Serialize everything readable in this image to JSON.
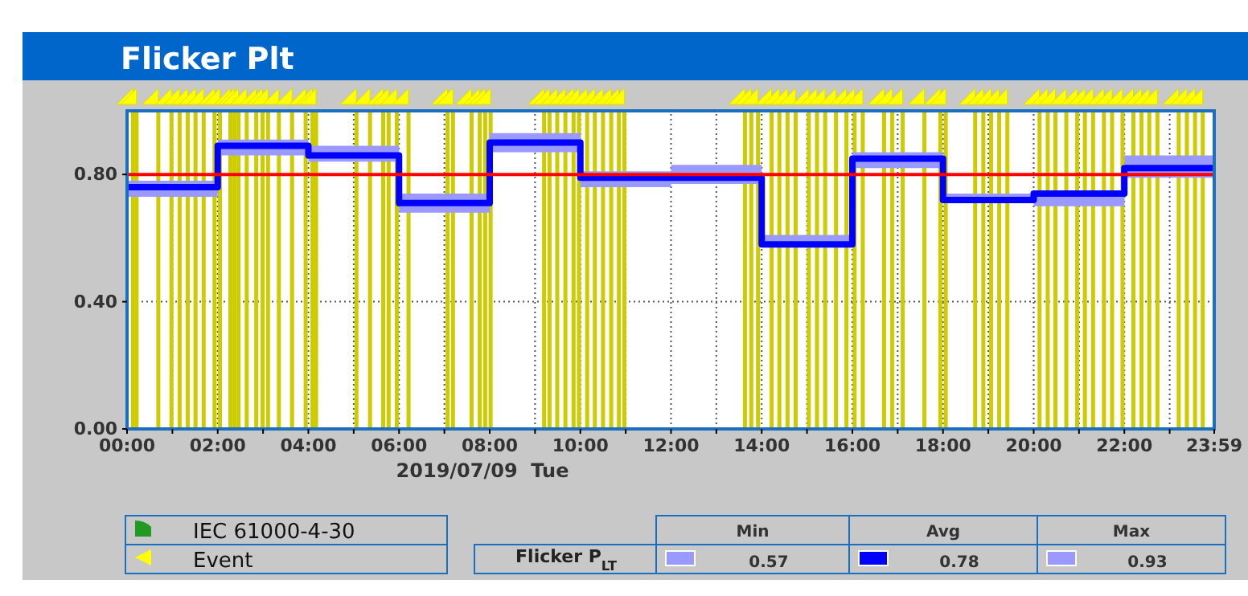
{
  "chart_data": {
    "type": "step",
    "title": "Flicker Plt",
    "xlabel": "2019/07/09  Tue",
    "xlim": [
      0,
      23.983
    ],
    "xticks": [
      {
        "value": 0,
        "label": "00:00"
      },
      {
        "value": 1,
        "label": null
      },
      {
        "value": 2,
        "label": "02:00"
      },
      {
        "value": 3,
        "label": null
      },
      {
        "value": 4,
        "label": "04:00"
      },
      {
        "value": 5,
        "label": null
      },
      {
        "value": 6,
        "label": "06:00"
      },
      {
        "value": 7,
        "label": null
      },
      {
        "value": 8,
        "label": "08:00"
      },
      {
        "value": 9,
        "label": null
      },
      {
        "value": 10,
        "label": "10:00"
      },
      {
        "value": 11,
        "label": null
      },
      {
        "value": 12,
        "label": "12:00"
      },
      {
        "value": 13,
        "label": null
      },
      {
        "value": 14,
        "label": "14:00"
      },
      {
        "value": 15,
        "label": null
      },
      {
        "value": 16,
        "label": "16:00"
      },
      {
        "value": 17,
        "label": null
      },
      {
        "value": 18,
        "label": "18:00"
      },
      {
        "value": 19,
        "label": null
      },
      {
        "value": 20,
        "label": "20:00"
      },
      {
        "value": 21,
        "label": null
      },
      {
        "value": 22,
        "label": "22:00"
      },
      {
        "value": 23,
        "label": null
      },
      {
        "value": 23.983,
        "label": "23:59"
      }
    ],
    "ylim": [
      0,
      1.0
    ],
    "yticks": [
      {
        "value": 0,
        "label": "0.00"
      },
      {
        "value": 0.4,
        "label": "0.40"
      },
      {
        "value": 0.8,
        "label": "0.80"
      }
    ],
    "grid": true,
    "series": [
      {
        "color": "#0000ff",
        "x": [
          0,
          2,
          4,
          6,
          8,
          10,
          12,
          14,
          16,
          18,
          20,
          22,
          23.983
        ],
        "values": [
          0.76,
          0.89,
          0.86,
          0.71,
          0.9,
          0.79,
          0.79,
          0.58,
          0.85,
          0.72,
          0.74,
          0.82,
          0.82
        ],
        "lower": [
          0.73,
          0.86,
          0.84,
          0.68,
          0.87,
          0.76,
          0.77,
          0.57,
          0.82,
          0.71,
          0.7,
          0.79,
          0.79
        ],
        "upper": [
          0.78,
          0.91,
          0.89,
          0.74,
          0.93,
          0.81,
          0.83,
          0.61,
          0.87,
          0.74,
          0.75,
          0.86,
          0.86
        ]
      }
    ],
    "ref_lines": [
      {
        "axis": "y",
        "value": 0.8,
        "color": "#ff0000"
      },
      {
        "axis": "x",
        "value": 0.13,
        "color": "#cccc00"
      },
      {
        "axis": "x",
        "value": 0.21,
        "color": "#cccc00"
      },
      {
        "axis": "x",
        "value": 0.69,
        "color": "#cccc00"
      },
      {
        "axis": "x",
        "value": 0.98,
        "color": "#cccc00"
      },
      {
        "axis": "x",
        "value": 1.16,
        "color": "#cccc00"
      },
      {
        "axis": "x",
        "value": 1.34,
        "color": "#cccc00"
      },
      {
        "axis": "x",
        "value": 1.51,
        "color": "#cccc00"
      },
      {
        "axis": "x",
        "value": 1.69,
        "color": "#cccc00"
      },
      {
        "axis": "x",
        "value": 1.93,
        "color": "#cccc00"
      },
      {
        "axis": "x",
        "value": 2.05,
        "color": "#cccc00"
      },
      {
        "axis": "x",
        "value": 2.28,
        "color": "#cccc00"
      },
      {
        "axis": "x",
        "value": 2.37,
        "color": "#cccc00"
      },
      {
        "axis": "x",
        "value": 2.46,
        "color": "#cccc00"
      },
      {
        "axis": "x",
        "value": 2.64,
        "color": "#cccc00"
      },
      {
        "axis": "x",
        "value": 2.85,
        "color": "#cccc00"
      },
      {
        "axis": "x",
        "value": 2.99,
        "color": "#cccc00"
      },
      {
        "axis": "x",
        "value": 3.11,
        "color": "#cccc00"
      },
      {
        "axis": "x",
        "value": 3.35,
        "color": "#cccc00"
      },
      {
        "axis": "x",
        "value": 3.64,
        "color": "#cccc00"
      },
      {
        "axis": "x",
        "value": 3.94,
        "color": "#cccc00"
      },
      {
        "axis": "x",
        "value": 4.09,
        "color": "#cccc00"
      },
      {
        "axis": "x",
        "value": 4.17,
        "color": "#cccc00"
      },
      {
        "axis": "x",
        "value": 5.06,
        "color": "#cccc00"
      },
      {
        "axis": "x",
        "value": 5.36,
        "color": "#cccc00"
      },
      {
        "axis": "x",
        "value": 5.65,
        "color": "#cccc00"
      },
      {
        "axis": "x",
        "value": 5.77,
        "color": "#cccc00"
      },
      {
        "axis": "x",
        "value": 5.95,
        "color": "#cccc00"
      },
      {
        "axis": "x",
        "value": 6.21,
        "color": "#cccc00"
      },
      {
        "axis": "x",
        "value": 7.07,
        "color": "#cccc00"
      },
      {
        "axis": "x",
        "value": 7.19,
        "color": "#cccc00"
      },
      {
        "axis": "x",
        "value": 7.6,
        "color": "#cccc00"
      },
      {
        "axis": "x",
        "value": 7.78,
        "color": "#cccc00"
      },
      {
        "axis": "x",
        "value": 7.9,
        "color": "#cccc00"
      },
      {
        "axis": "x",
        "value": 8.02,
        "color": "#cccc00"
      },
      {
        "axis": "x",
        "value": 9.2,
        "color": "#cccc00"
      },
      {
        "axis": "x",
        "value": 9.32,
        "color": "#cccc00"
      },
      {
        "axis": "x",
        "value": 9.49,
        "color": "#cccc00"
      },
      {
        "axis": "x",
        "value": 9.67,
        "color": "#cccc00"
      },
      {
        "axis": "x",
        "value": 9.85,
        "color": "#cccc00"
      },
      {
        "axis": "x",
        "value": 9.97,
        "color": "#cccc00"
      },
      {
        "axis": "x",
        "value": 10.15,
        "color": "#cccc00"
      },
      {
        "axis": "x",
        "value": 10.32,
        "color": "#cccc00"
      },
      {
        "axis": "x",
        "value": 10.5,
        "color": "#cccc00"
      },
      {
        "axis": "x",
        "value": 10.68,
        "color": "#cccc00"
      },
      {
        "axis": "x",
        "value": 10.85,
        "color": "#cccc00"
      },
      {
        "axis": "x",
        "value": 10.97,
        "color": "#cccc00"
      },
      {
        "axis": "x",
        "value": 13.63,
        "color": "#cccc00"
      },
      {
        "axis": "x",
        "value": 13.77,
        "color": "#cccc00"
      },
      {
        "axis": "x",
        "value": 13.92,
        "color": "#cccc00"
      },
      {
        "axis": "x",
        "value": 14.22,
        "color": "#cccc00"
      },
      {
        "axis": "x",
        "value": 14.39,
        "color": "#cccc00"
      },
      {
        "axis": "x",
        "value": 14.57,
        "color": "#cccc00"
      },
      {
        "axis": "x",
        "value": 14.75,
        "color": "#cccc00"
      },
      {
        "axis": "x",
        "value": 15.04,
        "color": "#cccc00"
      },
      {
        "axis": "x",
        "value": 15.22,
        "color": "#cccc00"
      },
      {
        "axis": "x",
        "value": 15.4,
        "color": "#cccc00"
      },
      {
        "axis": "x",
        "value": 15.64,
        "color": "#cccc00"
      },
      {
        "axis": "x",
        "value": 15.87,
        "color": "#cccc00"
      },
      {
        "axis": "x",
        "value": 16.05,
        "color": "#cccc00"
      },
      {
        "axis": "x",
        "value": 16.23,
        "color": "#cccc00"
      },
      {
        "axis": "x",
        "value": 16.7,
        "color": "#cccc00"
      },
      {
        "axis": "x",
        "value": 16.88,
        "color": "#cccc00"
      },
      {
        "axis": "x",
        "value": 17.11,
        "color": "#cccc00"
      },
      {
        "axis": "x",
        "value": 17.59,
        "color": "#cccc00"
      },
      {
        "axis": "x",
        "value": 17.94,
        "color": "#cccc00"
      },
      {
        "axis": "x",
        "value": 18.06,
        "color": "#cccc00"
      },
      {
        "axis": "x",
        "value": 18.71,
        "color": "#cccc00"
      },
      {
        "axis": "x",
        "value": 18.89,
        "color": "#cccc00"
      },
      {
        "axis": "x",
        "value": 19.06,
        "color": "#cccc00"
      },
      {
        "axis": "x",
        "value": 19.24,
        "color": "#cccc00"
      },
      {
        "axis": "x",
        "value": 19.42,
        "color": "#cccc00"
      },
      {
        "axis": "x",
        "value": 20.13,
        "color": "#cccc00"
      },
      {
        "axis": "x",
        "value": 20.31,
        "color": "#cccc00"
      },
      {
        "axis": "x",
        "value": 20.48,
        "color": "#cccc00"
      },
      {
        "axis": "x",
        "value": 20.72,
        "color": "#cccc00"
      },
      {
        "axis": "x",
        "value": 20.96,
        "color": "#cccc00"
      },
      {
        "axis": "x",
        "value": 21.13,
        "color": "#cccc00"
      },
      {
        "axis": "x",
        "value": 21.31,
        "color": "#cccc00"
      },
      {
        "axis": "x",
        "value": 21.55,
        "color": "#cccc00"
      },
      {
        "axis": "x",
        "value": 21.73,
        "color": "#cccc00"
      },
      {
        "axis": "x",
        "value": 21.96,
        "color": "#cccc00"
      },
      {
        "axis": "x",
        "value": 22.2,
        "color": "#cccc00"
      },
      {
        "axis": "x",
        "value": 22.38,
        "color": "#cccc00"
      },
      {
        "axis": "x",
        "value": 22.55,
        "color": "#cccc00"
      },
      {
        "axis": "x",
        "value": 22.73,
        "color": "#cccc00"
      },
      {
        "axis": "x",
        "value": 23.2,
        "color": "#cccc00"
      },
      {
        "axis": "x",
        "value": 23.38,
        "color": "#cccc00"
      },
      {
        "axis": "x",
        "value": 23.56,
        "color": "#cccc00"
      },
      {
        "axis": "x",
        "value": 23.73,
        "color": "#cccc00"
      }
    ],
    "annotations": [
      "IEC 61000-4-30",
      "Event",
      "Flicker P$_{LT}$",
      "Min",
      "Avg",
      "Max",
      "0.57",
      "0.78",
      "0.93"
    ]
  }
}
